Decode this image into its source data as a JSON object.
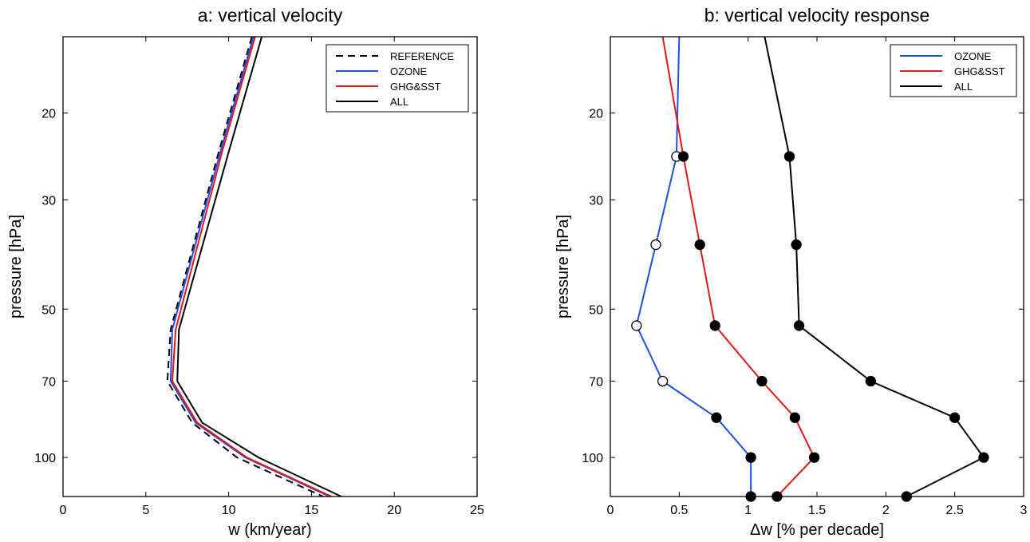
{
  "chart_data": [
    {
      "type": "line",
      "title": "a: vertical velocity",
      "xlabel": "w (km/year)",
      "ylabel": "pressure [hPa]",
      "xlim": [
        0,
        25
      ],
      "ylim": [
        120,
        14
      ],
      "yscale": "log",
      "xticks": [
        0,
        5,
        10,
        15,
        20,
        25
      ],
      "yticks": [
        20,
        30,
        50,
        70,
        100
      ],
      "legend": "top-right",
      "grid": false,
      "series": [
        {
          "name": "REFERENCE",
          "color": "#000000",
          "style": "dashed",
          "markers": "none",
          "points": [
            [
              11.4,
              14
            ],
            [
              9.4,
              24
            ],
            [
              6.5,
              55
            ],
            [
              6.3,
              70
            ],
            [
              7.8,
              85
            ],
            [
              10.5,
              100
            ],
            [
              15.7,
              120
            ]
          ]
        },
        {
          "name": "OZONE",
          "color": "#1f4fe0",
          "style": "solid",
          "markers": "none",
          "points": [
            [
              11.5,
              14
            ],
            [
              9.5,
              24
            ],
            [
              6.6,
              55
            ],
            [
              6.5,
              70
            ],
            [
              8.0,
              85
            ],
            [
              11.0,
              100
            ],
            [
              16.1,
              120
            ]
          ]
        },
        {
          "name": "GHG&SST",
          "color": "#e01818",
          "style": "solid",
          "markers": "none",
          "points": [
            [
              11.6,
              14
            ],
            [
              9.6,
              24
            ],
            [
              6.8,
              55
            ],
            [
              6.6,
              70
            ],
            [
              8.1,
              85
            ],
            [
              11.1,
              100
            ],
            [
              16.2,
              120
            ]
          ]
        },
        {
          "name": "ALL",
          "color": "#000000",
          "style": "solid",
          "markers": "none",
          "points": [
            [
              12.0,
              14
            ],
            [
              10.0,
              24
            ],
            [
              7.0,
              55
            ],
            [
              6.9,
              70
            ],
            [
              8.4,
              85
            ],
            [
              11.8,
              100
            ],
            [
              16.8,
              120
            ]
          ]
        }
      ]
    },
    {
      "type": "line",
      "title": "b: vertical velocity response",
      "xlabel": "Δw  [% per decade]",
      "ylabel": "pressure [hPa]",
      "xlim": [
        0,
        3
      ],
      "ylim": [
        120,
        14
      ],
      "yscale": "log",
      "xticks": [
        0,
        0.5,
        1,
        1.5,
        2,
        2.5,
        3
      ],
      "yticks": [
        20,
        30,
        50,
        70,
        100
      ],
      "legend": "top-right",
      "grid": false,
      "series": [
        {
          "name": "OZONE",
          "color": "#1f4fe0",
          "style": "solid",
          "markers": "circle",
          "points": [
            [
              0.5,
              14,
              "none"
            ],
            [
              0.48,
              24.5,
              "open"
            ],
            [
              0.33,
              37,
              "open"
            ],
            [
              0.19,
              54,
              "open"
            ],
            [
              0.38,
              70,
              "open"
            ],
            [
              0.77,
              83,
              "filled"
            ],
            [
              1.02,
              100,
              "filled"
            ],
            [
              1.02,
              120,
              "filled"
            ]
          ]
        },
        {
          "name": "GHG&SST",
          "color": "#e01818",
          "style": "solid",
          "markers": "circle",
          "points": [
            [
              0.38,
              14,
              "none"
            ],
            [
              0.53,
              24.5,
              "filled"
            ],
            [
              0.65,
              37,
              "filled"
            ],
            [
              0.76,
              54,
              "filled"
            ],
            [
              1.1,
              70,
              "filled"
            ],
            [
              1.34,
              83,
              "filled"
            ],
            [
              1.48,
              100,
              "filled"
            ],
            [
              1.21,
              120,
              "filled"
            ]
          ]
        },
        {
          "name": "ALL",
          "color": "#000000",
          "style": "solid",
          "markers": "circle",
          "points": [
            [
              1.12,
              14,
              "none"
            ],
            [
              1.3,
              24.5,
              "filled"
            ],
            [
              1.35,
              37,
              "filled"
            ],
            [
              1.37,
              54,
              "filled"
            ],
            [
              1.89,
              70,
              "filled"
            ],
            [
              2.5,
              83,
              "filled"
            ],
            [
              2.71,
              100,
              "filled"
            ],
            [
              2.15,
              120,
              "filled"
            ]
          ]
        }
      ]
    }
  ]
}
